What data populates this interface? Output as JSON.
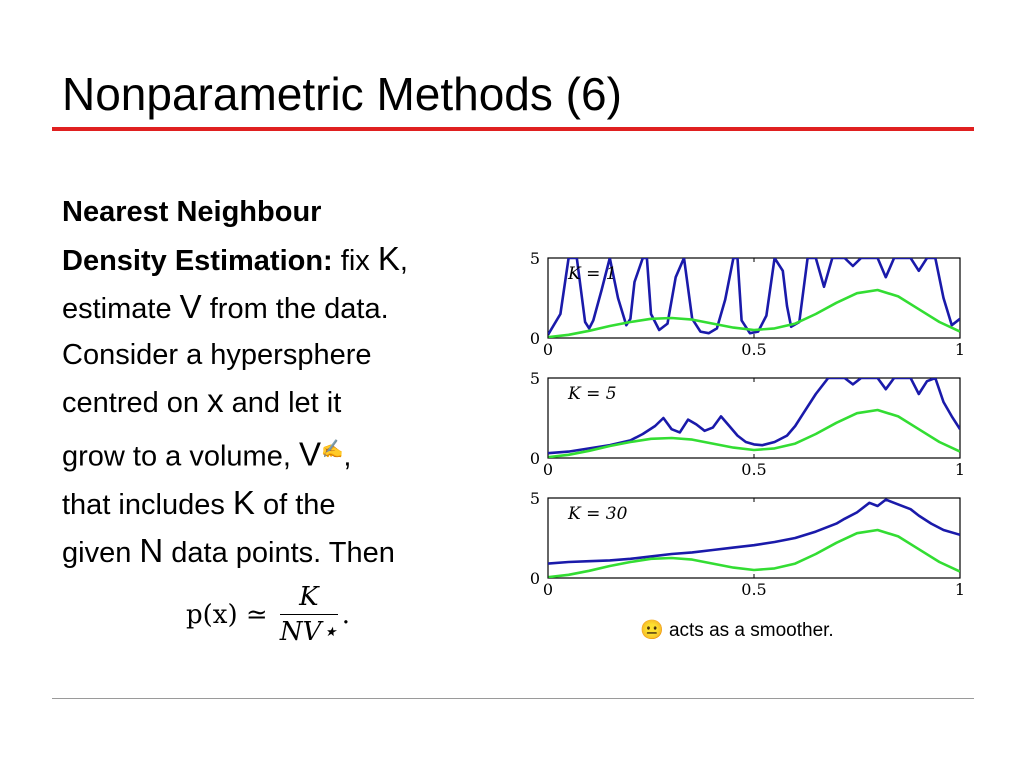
{
  "slide": {
    "title": "Nonparametric Methods (6)",
    "body": {
      "heading_line1": "Nearest Neighbour",
      "heading_line2": "Density Estimation:",
      "t1": " fix ",
      "sym_K": "K",
      "t2": ",",
      "t3": "estimate ",
      "sym_V": "V",
      "t4": " from the data.",
      "t5": "Consider a hypersphere",
      "t6": "centred on ",
      "sym_x": "x",
      "t7": " and let it",
      "t8": "grow to a volume, ",
      "sym_Vstar": "V",
      "star_glyph": "✍",
      "t9": ",",
      "t10": "that includes ",
      "sym_K2": "K",
      "t11": " of the",
      "t12": "given ",
      "sym_N": "N",
      "t13": " data points. Then"
    },
    "formula": {
      "lhs": "p(x) ≃",
      "numerator": "K",
      "denominator": "NV⋆",
      "trail": "."
    },
    "caption": {
      "icon": "neutral-face-icon",
      "glyph": "😐",
      "text": " acts as a smoother."
    }
  },
  "colors": {
    "accent_rule": "#e02020",
    "estimate": "#1a1aaa",
    "true_density": "#33dd33"
  },
  "chart_data": [
    {
      "type": "line",
      "annotation": "K = 1",
      "xlim": [
        0,
        1
      ],
      "ylim": [
        0,
        5
      ],
      "xticks": [
        "0",
        "0.5",
        "1"
      ],
      "yticks": [
        "0",
        "5"
      ],
      "series": [
        {
          "x": [
            0,
            0.03,
            0.05,
            0.07,
            0.09,
            0.1,
            0.11,
            0.13,
            0.15,
            0.17,
            0.19,
            0.2,
            0.21,
            0.23,
            0.24,
            0.25,
            0.27,
            0.29,
            0.31,
            0.33,
            0.35,
            0.37,
            0.39,
            0.41,
            0.43,
            0.45,
            0.46,
            0.47,
            0.49,
            0.51,
            0.53,
            0.55,
            0.57,
            0.58,
            0.59,
            0.61,
            0.63,
            0.65,
            0.67,
            0.69,
            0.7,
            0.72,
            0.74,
            0.76,
            0.78,
            0.8,
            0.82,
            0.84,
            0.86,
            0.88,
            0.9,
            0.92,
            0.94,
            0.96,
            0.98,
            1
          ],
          "y": [
            0.2,
            1.5,
            5,
            5,
            1.0,
            0.6,
            1.1,
            3.0,
            5,
            2.5,
            0.8,
            1.2,
            3.5,
            5,
            5,
            1.5,
            0.5,
            0.9,
            3.8,
            5,
            1.2,
            0.4,
            0.3,
            0.6,
            2.4,
            5,
            5,
            1.1,
            0.3,
            0.4,
            1.4,
            5,
            4.2,
            2.0,
            0.7,
            1.0,
            5,
            5,
            3.2,
            5,
            5,
            5,
            4.5,
            5,
            5,
            5,
            3.8,
            5,
            5,
            5,
            4.2,
            5,
            5,
            2.5,
            0.8,
            1.2
          ]
        },
        {
          "x": [
            0,
            0.05,
            0.1,
            0.15,
            0.2,
            0.25,
            0.3,
            0.35,
            0.4,
            0.45,
            0.5,
            0.55,
            0.6,
            0.65,
            0.7,
            0.75,
            0.8,
            0.85,
            0.9,
            0.95,
            1
          ],
          "y": [
            0.05,
            0.2,
            0.45,
            0.75,
            1.0,
            1.2,
            1.25,
            1.15,
            0.9,
            0.65,
            0.5,
            0.6,
            0.9,
            1.5,
            2.2,
            2.8,
            3.0,
            2.6,
            1.8,
            1.0,
            0.4
          ]
        }
      ]
    },
    {
      "type": "line",
      "annotation": "K = 5",
      "xlim": [
        0,
        1
      ],
      "ylim": [
        0,
        5
      ],
      "xticks": [
        "0",
        "0.5",
        "1"
      ],
      "yticks": [
        "0",
        "5"
      ],
      "series": [
        {
          "x": [
            0,
            0.05,
            0.1,
            0.15,
            0.2,
            0.23,
            0.26,
            0.28,
            0.3,
            0.32,
            0.34,
            0.36,
            0.38,
            0.4,
            0.42,
            0.44,
            0.46,
            0.48,
            0.5,
            0.52,
            0.55,
            0.58,
            0.6,
            0.62,
            0.65,
            0.68,
            0.7,
            0.72,
            0.74,
            0.76,
            0.78,
            0.8,
            0.82,
            0.84,
            0.86,
            0.88,
            0.9,
            0.92,
            0.94,
            0.96,
            0.98,
            1
          ],
          "y": [
            0.3,
            0.4,
            0.6,
            0.8,
            1.1,
            1.5,
            2.0,
            2.5,
            1.8,
            1.6,
            2.4,
            2.1,
            1.7,
            1.9,
            2.6,
            2.0,
            1.4,
            1.0,
            0.85,
            0.8,
            1.0,
            1.4,
            2.0,
            2.8,
            4.0,
            5,
            5,
            5,
            4.6,
            5,
            5,
            5,
            4.3,
            5,
            5,
            5,
            4.0,
            4.8,
            5,
            3.5,
            2.6,
            1.8
          ]
        },
        {
          "x": [
            0,
            0.05,
            0.1,
            0.15,
            0.2,
            0.25,
            0.3,
            0.35,
            0.4,
            0.45,
            0.5,
            0.55,
            0.6,
            0.65,
            0.7,
            0.75,
            0.8,
            0.85,
            0.9,
            0.95,
            1
          ],
          "y": [
            0.05,
            0.2,
            0.45,
            0.75,
            1.0,
            1.2,
            1.25,
            1.15,
            0.9,
            0.65,
            0.5,
            0.6,
            0.9,
            1.5,
            2.2,
            2.8,
            3.0,
            2.6,
            1.8,
            1.0,
            0.4
          ]
        }
      ]
    },
    {
      "type": "line",
      "annotation": "K = 30",
      "xlim": [
        0,
        1
      ],
      "ylim": [
        0,
        5
      ],
      "xticks": [
        "0",
        "0.5",
        "1"
      ],
      "yticks": [
        "0",
        "5"
      ],
      "series": [
        {
          "x": [
            0,
            0.05,
            0.1,
            0.15,
            0.2,
            0.25,
            0.3,
            0.35,
            0.4,
            0.45,
            0.5,
            0.55,
            0.6,
            0.65,
            0.7,
            0.72,
            0.75,
            0.78,
            0.8,
            0.82,
            0.85,
            0.88,
            0.9,
            0.93,
            0.96,
            1
          ],
          "y": [
            0.9,
            1.0,
            1.05,
            1.1,
            1.2,
            1.35,
            1.5,
            1.6,
            1.75,
            1.9,
            2.05,
            2.25,
            2.5,
            2.9,
            3.4,
            3.7,
            4.1,
            4.7,
            4.5,
            4.9,
            4.6,
            4.3,
            3.9,
            3.4,
            3.0,
            2.7
          ]
        },
        {
          "x": [
            0,
            0.05,
            0.1,
            0.15,
            0.2,
            0.25,
            0.3,
            0.35,
            0.4,
            0.45,
            0.5,
            0.55,
            0.6,
            0.65,
            0.7,
            0.75,
            0.8,
            0.85,
            0.9,
            0.95,
            1
          ],
          "y": [
            0.05,
            0.2,
            0.45,
            0.75,
            1.0,
            1.2,
            1.25,
            1.15,
            0.9,
            0.65,
            0.5,
            0.6,
            0.9,
            1.5,
            2.2,
            2.8,
            3.0,
            2.6,
            1.8,
            1.0,
            0.4
          ]
        }
      ]
    }
  ]
}
